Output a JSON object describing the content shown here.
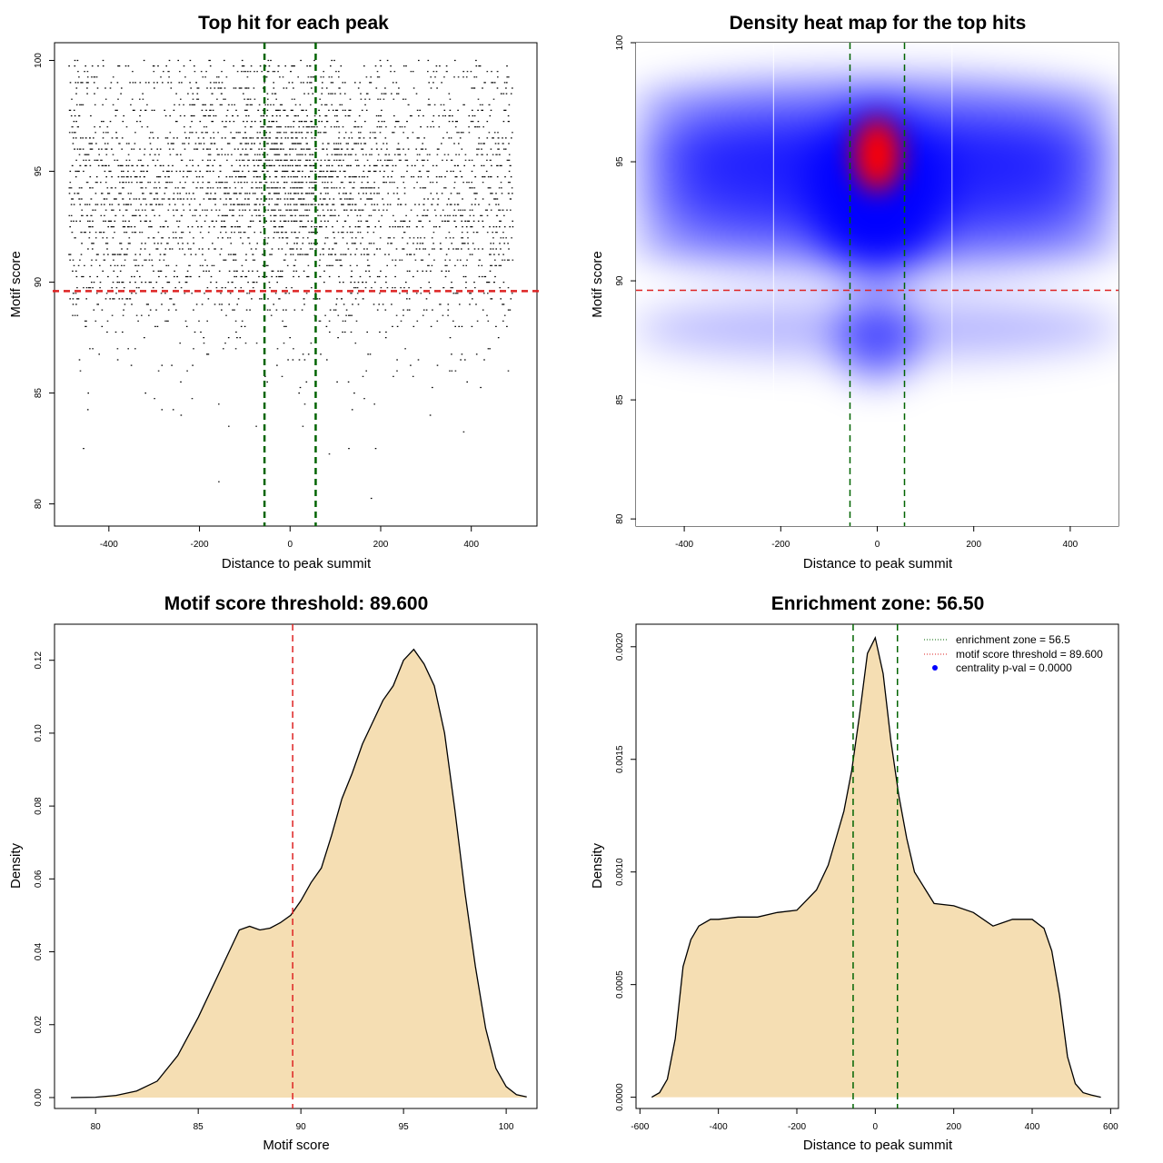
{
  "chart_data": [
    {
      "type": "scatter",
      "title": "Top hit for each peak",
      "xlabel": "Distance to peak summit",
      "ylabel": "Motif score",
      "xlim": [
        -500,
        500
      ],
      "ylim": [
        80,
        100
      ],
      "xticks": [
        -400,
        -200,
        0,
        200,
        400
      ],
      "yticks": [
        80,
        85,
        90,
        95,
        100
      ],
      "tick_labels_x": [
        "-400",
        "-200",
        "0",
        "200",
        "400"
      ],
      "tick_labels_y": [
        "80",
        "85",
        "90",
        "95",
        "100"
      ],
      "points_note": "dense cloud of points spanning x -490..490, y ~80..100, concentrated near x=0, y~95",
      "hlines": [
        {
          "y": 89.6,
          "color": "#dd2222",
          "style": "dashed"
        }
      ],
      "vlines": [
        {
          "x": -56.5,
          "color": "#006400",
          "style": "dashed"
        },
        {
          "x": 56.5,
          "color": "#006400",
          "style": "dashed"
        }
      ]
    },
    {
      "type": "heatmap",
      "title": "Density heat map for the top hits",
      "xlabel": "Distance to peak summit",
      "ylabel": "Motif score",
      "xlim": [
        -500,
        500
      ],
      "ylim": [
        80,
        100
      ],
      "xticks": [
        -400,
        -200,
        0,
        200,
        400
      ],
      "yticks": [
        80,
        85,
        90,
        95,
        100
      ],
      "tick_labels_x": [
        "-400",
        "-200",
        "0",
        "200",
        "400"
      ],
      "tick_labels_y": [
        "80",
        "85",
        "90",
        "95",
        "100"
      ],
      "color_scale": [
        "#ffffff",
        "#0000ff",
        "#ff0000"
      ],
      "hotspot": {
        "x": 0,
        "y": 95.3
      },
      "hlines": [
        {
          "y": 89.6,
          "color": "#dd2222",
          "style": "dashed"
        }
      ],
      "vlines": [
        {
          "x": -56.5,
          "color": "#006400",
          "style": "dashed"
        },
        {
          "x": 56.5,
          "color": "#006400",
          "style": "dashed"
        }
      ]
    },
    {
      "type": "area",
      "title": "Motif score threshold: 89.600",
      "xlabel": "Motif score",
      "ylabel": "Density",
      "xlim": [
        78,
        101.5
      ],
      "ylim": [
        -0.003,
        0.1299
      ],
      "xticks": [
        80,
        85,
        90,
        95,
        100
      ],
      "yticks": [
        0.0,
        0.02,
        0.04,
        0.06,
        0.08,
        0.1,
        0.12
      ],
      "tick_labels_x": [
        "80",
        "85",
        "90",
        "95",
        "100"
      ],
      "tick_labels_y": [
        "0.00",
        "0.02",
        "0.04",
        "0.06",
        "0.08",
        "0.10",
        "0.12"
      ],
      "fill": "#f5deb3",
      "x": [
        78.8,
        80,
        81,
        82,
        83,
        84,
        85,
        86,
        86.5,
        87,
        87.5,
        88,
        88.5,
        89,
        89.5,
        90,
        90.5,
        91,
        91.5,
        92,
        92.5,
        93,
        93.5,
        94,
        94.5,
        95,
        95.5,
        96,
        96.5,
        97,
        97.5,
        98,
        98.5,
        99,
        99.5,
        100,
        100.5,
        101
      ],
      "y": [
        0.0,
        0.0001,
        0.0006,
        0.0018,
        0.0045,
        0.0115,
        0.022,
        0.034,
        0.04,
        0.046,
        0.047,
        0.046,
        0.0465,
        0.048,
        0.05,
        0.054,
        0.059,
        0.063,
        0.072,
        0.082,
        0.089,
        0.097,
        0.103,
        0.109,
        0.113,
        0.12,
        0.123,
        0.119,
        0.113,
        0.1,
        0.079,
        0.056,
        0.036,
        0.019,
        0.008,
        0.003,
        0.0008,
        0.0002
      ],
      "vlines": [
        {
          "x": 89.6,
          "color": "#dd2222",
          "style": "dashed"
        }
      ]
    },
    {
      "type": "area",
      "title": "Enrichment zone: 56.50",
      "xlabel": "Distance to peak summit",
      "ylabel": "Density",
      "xlim": [
        -610,
        620
      ],
      "ylim": [
        -5e-05,
        0.0021
      ],
      "xticks": [
        -600,
        -400,
        -200,
        0,
        200,
        400,
        600
      ],
      "yticks": [
        0.0,
        0.0005,
        0.001,
        0.0015,
        0.002
      ],
      "tick_labels_x": [
        "-600",
        "-400",
        "-200",
        "0",
        "200",
        "400",
        "600"
      ],
      "tick_labels_y": [
        "0.0000",
        "0.0005",
        "0.0010",
        "0.0015",
        "0.0020"
      ],
      "fill": "#f5deb3",
      "x": [
        -570,
        -550,
        -530,
        -510,
        -490,
        -470,
        -450,
        -420,
        -400,
        -350,
        -300,
        -250,
        -200,
        -150,
        -120,
        -100,
        -80,
        -60,
        -40,
        -20,
        0,
        20,
        40,
        60,
        80,
        100,
        150,
        200,
        250,
        300,
        350,
        400,
        430,
        450,
        470,
        490,
        510,
        530,
        550,
        575
      ],
      "y": [
        0.0,
        2e-05,
        8e-05,
        0.00026,
        0.00058,
        0.0007,
        0.00076,
        0.00079,
        0.00079,
        0.0008,
        0.0008,
        0.00082,
        0.00083,
        0.00092,
        0.00103,
        0.00115,
        0.00127,
        0.00145,
        0.0017,
        0.00197,
        0.00204,
        0.00188,
        0.00158,
        0.00134,
        0.00115,
        0.001,
        0.00086,
        0.00085,
        0.00082,
        0.00076,
        0.00079,
        0.00079,
        0.00075,
        0.00065,
        0.00045,
        0.00018,
        6e-05,
        2e-05,
        1e-05,
        0.0
      ],
      "vlines": [
        {
          "x": -56.5,
          "color": "#006400",
          "style": "dashed"
        },
        {
          "x": 56.5,
          "color": "#006400",
          "style": "dashed"
        }
      ],
      "legend": [
        {
          "label": "enrichment zone = 56.5",
          "kind": "dotted-line",
          "color": "#006400"
        },
        {
          "label": "motif score threshold = 89.600",
          "kind": "dotted-line",
          "color": "#dd2222"
        },
        {
          "label": "centrality p-val = 0.0000",
          "kind": "dot",
          "color": "#0000ff"
        }
      ],
      "legend_position": "top-right"
    }
  ]
}
